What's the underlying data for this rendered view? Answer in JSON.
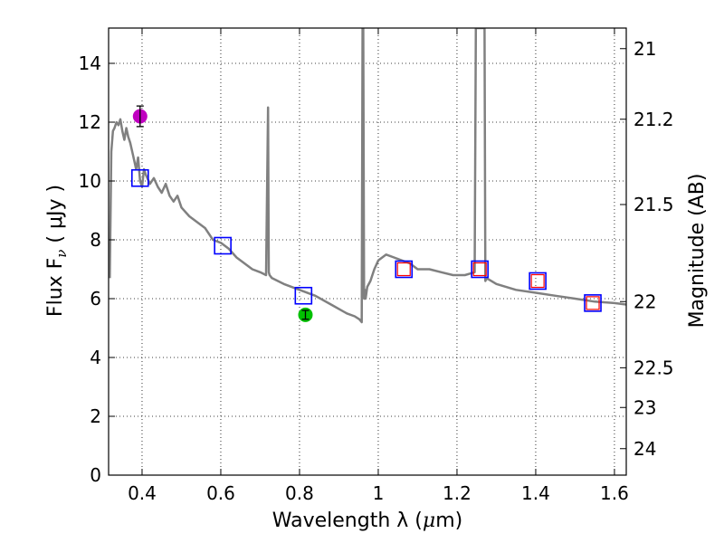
{
  "chart_data": {
    "type": "line",
    "title": "",
    "xlabel": "Wavelength  λ (μm)",
    "ylabel": "Flux  F_ν  ( μJy )",
    "ylabel_parts": {
      "prefix": "Flux  F",
      "sub": "ν",
      "suffix": "  ( μJy )"
    },
    "xlabel_parts": {
      "prefix": "Wavelength  λ (",
      "mu": "μ",
      "suffix": "m)"
    },
    "ylabel_right": "Magnitude (AB)",
    "xlim": [
      0.315,
      1.63
    ],
    "ylim": [
      0,
      15.2
    ],
    "grid": true,
    "x_ticks": [
      0.4,
      0.6,
      0.8,
      1.0,
      1.2,
      1.4,
      1.6
    ],
    "x_tick_labels": [
      "0.4",
      "0.6",
      "0.8",
      "1",
      "1.2",
      "1.4",
      "1.6"
    ],
    "y_ticks": [
      0,
      2,
      4,
      6,
      8,
      10,
      12,
      14
    ],
    "y_tick_labels": [
      "0",
      "2",
      "4",
      "6",
      "8",
      "10",
      "12",
      "14"
    ],
    "right_ticks": [
      {
        "flux": 14.5,
        "label": "21"
      },
      {
        "flux": 12.1,
        "label": "21.2"
      },
      {
        "flux": 9.2,
        "label": "21.5"
      },
      {
        "flux": 5.9,
        "label": "22"
      },
      {
        "flux": 3.65,
        "label": "22.5"
      },
      {
        "flux": 2.3,
        "label": "23"
      },
      {
        "flux": 0.9,
        "label": "24"
      }
    ],
    "series": [
      {
        "name": "template spectrum",
        "color": "#808080",
        "x": [
          0.318,
          0.322,
          0.326,
          0.33,
          0.335,
          0.34,
          0.345,
          0.35,
          0.355,
          0.36,
          0.365,
          0.37,
          0.375,
          0.38,
          0.385,
          0.39,
          0.395,
          0.4,
          0.405,
          0.41,
          0.42,
          0.43,
          0.44,
          0.45,
          0.46,
          0.47,
          0.48,
          0.49,
          0.5,
          0.52,
          0.54,
          0.56,
          0.58,
          0.6,
          0.62,
          0.64,
          0.66,
          0.68,
          0.7,
          0.715,
          0.72,
          0.722,
          0.724,
          0.73,
          0.76,
          0.8,
          0.84,
          0.88,
          0.92,
          0.94,
          0.952,
          0.958,
          0.96,
          0.962,
          0.964,
          0.966,
          0.968,
          0.972,
          0.98,
          0.99,
          1.0,
          1.02,
          1.04,
          1.06,
          1.08,
          1.1,
          1.13,
          1.16,
          1.19,
          1.22,
          1.245,
          1.248,
          1.25,
          1.26,
          1.27,
          1.272,
          1.275,
          1.3,
          1.35,
          1.4,
          1.45,
          1.5,
          1.55,
          1.6,
          1.63
        ],
        "y": [
          6.7,
          11.0,
          11.7,
          11.8,
          12.0,
          11.9,
          12.1,
          11.7,
          11.4,
          11.8,
          11.5,
          11.3,
          11.0,
          10.7,
          10.4,
          10.8,
          10.0,
          9.8,
          10.4,
          10.2,
          9.9,
          10.1,
          9.8,
          9.6,
          9.9,
          9.5,
          9.3,
          9.5,
          9.1,
          8.8,
          8.6,
          8.4,
          8.0,
          7.9,
          7.7,
          7.4,
          7.2,
          7.0,
          6.9,
          6.8,
          12.5,
          6.9,
          6.8,
          6.7,
          6.5,
          6.3,
          6.1,
          5.8,
          5.5,
          5.4,
          5.3,
          5.2,
          15.2,
          15.2,
          6.0,
          6.3,
          6.0,
          6.4,
          6.6,
          7.0,
          7.3,
          7.5,
          7.4,
          7.3,
          7.2,
          7.0,
          7.0,
          6.9,
          6.8,
          6.8,
          6.9,
          15.2,
          15.2,
          15.2,
          15.2,
          6.6,
          6.7,
          6.5,
          6.3,
          6.2,
          6.1,
          6.0,
          5.9,
          5.85,
          5.8
        ]
      },
      {
        "name": "model photometry (blue squares)",
        "color": "#0000ff",
        "marker": "square",
        "x": [
          0.395,
          0.605,
          0.81,
          1.065,
          1.258,
          1.405,
          1.545
        ],
        "y": [
          10.1,
          7.8,
          6.1,
          7.0,
          7.0,
          6.6,
          5.85
        ]
      },
      {
        "name": "synthetic photometry (red squares)",
        "color": "#ff0000",
        "marker": "square",
        "x": [
          1.065,
          1.258,
          1.405,
          1.545
        ],
        "y": [
          7.0,
          7.0,
          6.6,
          5.85
        ]
      },
      {
        "name": "observed point (magenta)",
        "color": "#c000c0",
        "marker": "circle",
        "x": [
          0.395
        ],
        "y": [
          12.2
        ],
        "yerr": [
          0.35
        ]
      },
      {
        "name": "observed point (green)",
        "color": "#00c000",
        "marker": "circle",
        "x": [
          0.815
        ],
        "y": [
          5.45
        ],
        "yerr": [
          0.15
        ]
      }
    ]
  }
}
